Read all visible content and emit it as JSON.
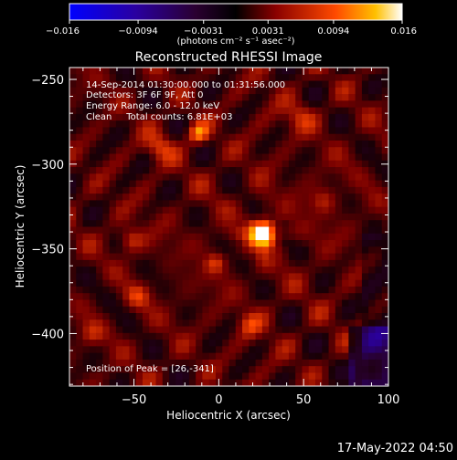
{
  "chart_data": {
    "type": "heatmap",
    "title": "Reconstructed RHESSI Image",
    "xlabel": "Heliocentric X (arcsec)",
    "ylabel": "Heliocentric Y (arcsec)",
    "xlim": [
      -88,
      100
    ],
    "ylim": [
      -431,
      -243
    ],
    "xticks": [
      -50,
      0,
      50,
      100
    ],
    "xtick_labels": [
      "−50",
      "0",
      "50",
      "100"
    ],
    "yticks": [
      -250,
      -300,
      -350,
      -400
    ],
    "ytick_labels": [
      "−250",
      "−300",
      "−350",
      "−400"
    ],
    "colorbar": {
      "range": [
        -0.016,
        0.016
      ],
      "ticks": [
        -0.016,
        -0.0094,
        -0.0031,
        0.0031,
        0.0094,
        0.016
      ],
      "tick_labels": [
        "−0.016",
        "−0.0094",
        "−0.0031",
        "0.0031",
        "0.0094",
        "0.016"
      ],
      "unit_label": "(photons cm⁻² s⁻¹ asec⁻²)"
    },
    "annotations": [
      "14-Sep-2014 01:30:00.000 to 01:31:56.000",
      "Detectors: 3F 6F 9F, Att 0",
      "Energy Range: 6.0 - 12.0 keV",
      "Clean     Total counts: 6.81E+03"
    ],
    "peak": {
      "x": 26,
      "y": -341,
      "label": "Position of Peak = [26,-341]"
    }
  },
  "footer": {
    "date": "17-May-2022 04:50"
  }
}
